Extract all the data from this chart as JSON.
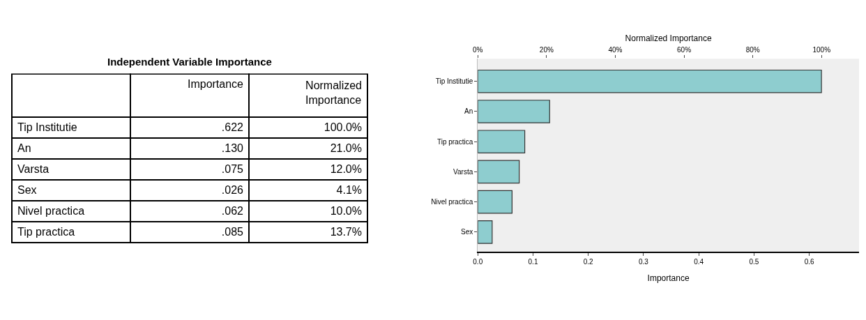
{
  "chart_data": [
    {
      "type": "other",
      "title": "Independent Variable Importance",
      "categories": [
        "Importance",
        "Normalized Importance"
      ],
      "y_categories": [
        "Tip Institutie",
        "An",
        "Varsta",
        "Sex",
        "Nivel practica",
        "Tip practica"
      ],
      "cell_labels": [
        [
          ".622",
          "100.0%"
        ],
        [
          ".130",
          "21.0%"
        ],
        [
          ".075",
          "12.0%"
        ],
        [
          ".026",
          "4.1%"
        ],
        [
          ".062",
          "10.0%"
        ],
        [
          ".085",
          "13.7%"
        ]
      ]
    },
    {
      "type": "bar",
      "orientation": "horizontal",
      "xlabel": "Importance",
      "x2label": "Normalized Importance",
      "categories": [
        "Tip Institutie",
        "An",
        "Tip practica",
        "Varsta",
        "Nivel practica",
        "Sex"
      ],
      "values": [
        0.622,
        0.13,
        0.085,
        0.075,
        0.062,
        0.026
      ],
      "color": "#8ecdcf",
      "xlim": [
        0,
        0.69
      ],
      "xticks": [
        {
          "value": 0,
          "label": "0.0"
        },
        {
          "value": 0.1,
          "label": "0.1"
        },
        {
          "value": 0.2,
          "label": "0.2"
        },
        {
          "value": 0.3,
          "label": "0.3"
        },
        {
          "value": 0.4,
          "label": "0.4"
        },
        {
          "value": 0.5,
          "label": "0.5"
        },
        {
          "value": 0.6,
          "label": "0.6"
        }
      ],
      "x2lim": [
        0,
        110.9
      ],
      "x2ticks": [
        {
          "value": 0,
          "label": "0%"
        },
        {
          "value": 20,
          "label": "20%"
        },
        {
          "value": 40,
          "label": "40%"
        },
        {
          "value": 60,
          "label": "60%"
        },
        {
          "value": 80,
          "label": "80%"
        },
        {
          "value": 100,
          "label": "100%"
        }
      ]
    }
  ]
}
